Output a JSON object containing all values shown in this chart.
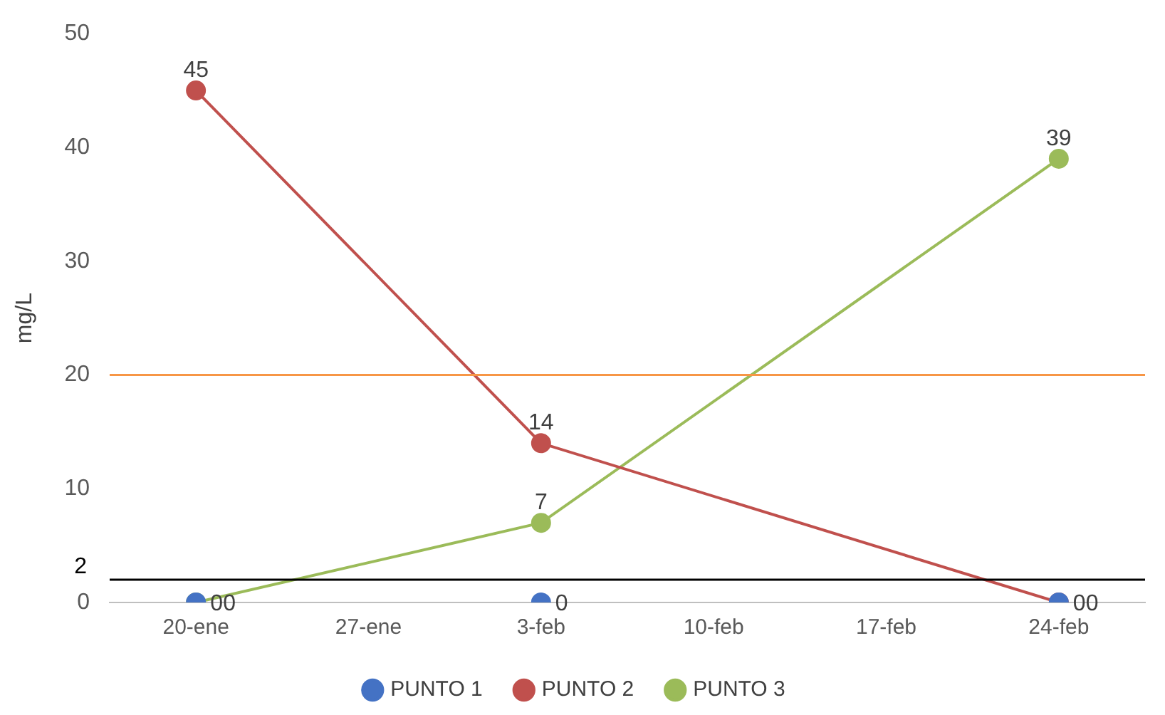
{
  "chart_data": {
    "type": "line",
    "ylabel": "mg/L",
    "categories": [
      "20-ene",
      "27-ene",
      "3-feb",
      "10-feb",
      "17-feb",
      "24-feb"
    ],
    "series": [
      {
        "name": "PUNTO 1",
        "type": "scatter",
        "color": "#4472c4",
        "values": [
          0,
          null,
          0,
          null,
          null,
          0
        ]
      },
      {
        "name": "PUNTO 2",
        "color": "#c0504d",
        "values": [
          45,
          null,
          14,
          null,
          null,
          0
        ]
      },
      {
        "name": "PUNTO 3",
        "color": "#9bbb59",
        "values": [
          0,
          null,
          7,
          null,
          null,
          39
        ]
      }
    ],
    "ylim": [
      0,
      50
    ],
    "yticks": [
      0,
      10,
      20,
      30,
      40,
      50
    ],
    "ref_lines": [
      {
        "axis": "y",
        "value": 20,
        "label": null,
        "color": "#f79646"
      },
      {
        "axis": "y",
        "value": 2,
        "label": "2",
        "color": "#000000"
      }
    ],
    "data_labels": true,
    "grid": false,
    "legend": "bottom",
    "marker": "circle"
  }
}
